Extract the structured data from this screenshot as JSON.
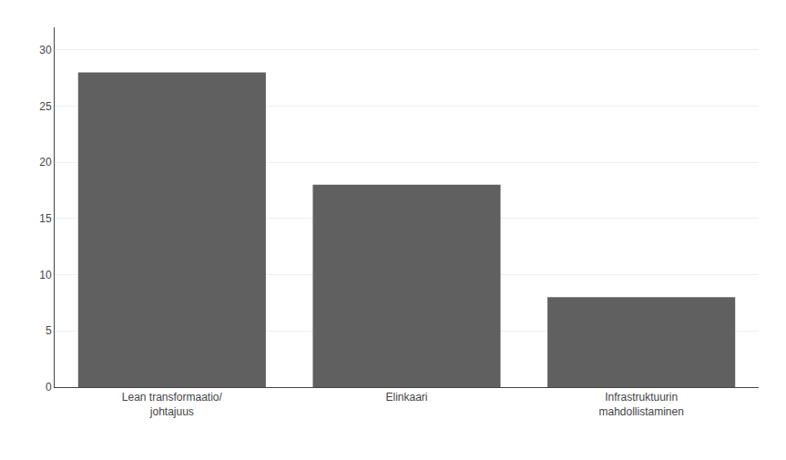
{
  "chart_data": {
    "type": "bar",
    "categories": [
      "Lean transformaatio/\njohtajuus",
      "Elinkaari",
      "Infrastruktuurin\nmahdollistaminen"
    ],
    "values": [
      28,
      18,
      8
    ],
    "color": "#606060",
    "ylim": [
      0,
      32
    ],
    "yticks": [
      0,
      5,
      10,
      15,
      20,
      25,
      30
    ],
    "grid": true
  }
}
